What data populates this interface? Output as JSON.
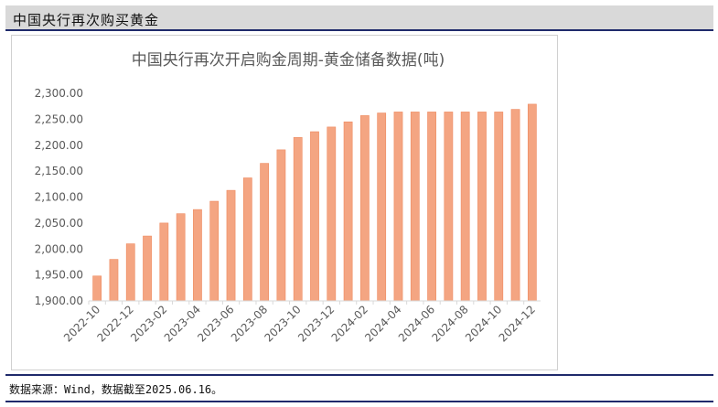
{
  "header": {
    "title": "中国央行再次购买黄金"
  },
  "footer": {
    "source": "数据来源：Wind，数据截至2025.06.16。"
  },
  "chart_data": {
    "type": "bar",
    "title": "中国央行再次开启购金周期-黄金储备数据(吨)",
    "xlabel": "",
    "ylabel": "",
    "ylim": [
      1900,
      2300
    ],
    "yticks": [
      "1,900.00",
      "1,950.00",
      "2,000.00",
      "2,050.00",
      "2,100.00",
      "2,150.00",
      "2,200.00",
      "2,250.00",
      "2,300.00"
    ],
    "xtick_labels": [
      "2022-10",
      "2022-12",
      "2023-02",
      "2023-04",
      "2023-06",
      "2023-08",
      "2023-10",
      "2023-12",
      "2024-02",
      "2024-04",
      "2024-06",
      "2024-08",
      "2024-10",
      "2024-12"
    ],
    "categories": [
      "2022-10",
      "2022-11",
      "2022-12",
      "2023-01",
      "2023-02",
      "2023-03",
      "2023-04",
      "2023-05",
      "2023-06",
      "2023-07",
      "2023-08",
      "2023-09",
      "2023-10",
      "2023-11",
      "2023-12",
      "2024-01",
      "2024-02",
      "2024-03",
      "2024-04",
      "2024-05",
      "2024-06",
      "2024-07",
      "2024-08",
      "2024-09",
      "2024-10",
      "2024-11",
      "2024-12"
    ],
    "values": [
      1948,
      1980,
      2010,
      2025,
      2050,
      2068,
      2076,
      2092,
      2113,
      2137,
      2165,
      2191,
      2215,
      2226,
      2235,
      2245,
      2257,
      2262,
      2264,
      2264,
      2264,
      2264,
      2264,
      2264,
      2264,
      2269,
      2279
    ],
    "bar_color": "#f4a582",
    "grid": false,
    "legend": "none"
  }
}
